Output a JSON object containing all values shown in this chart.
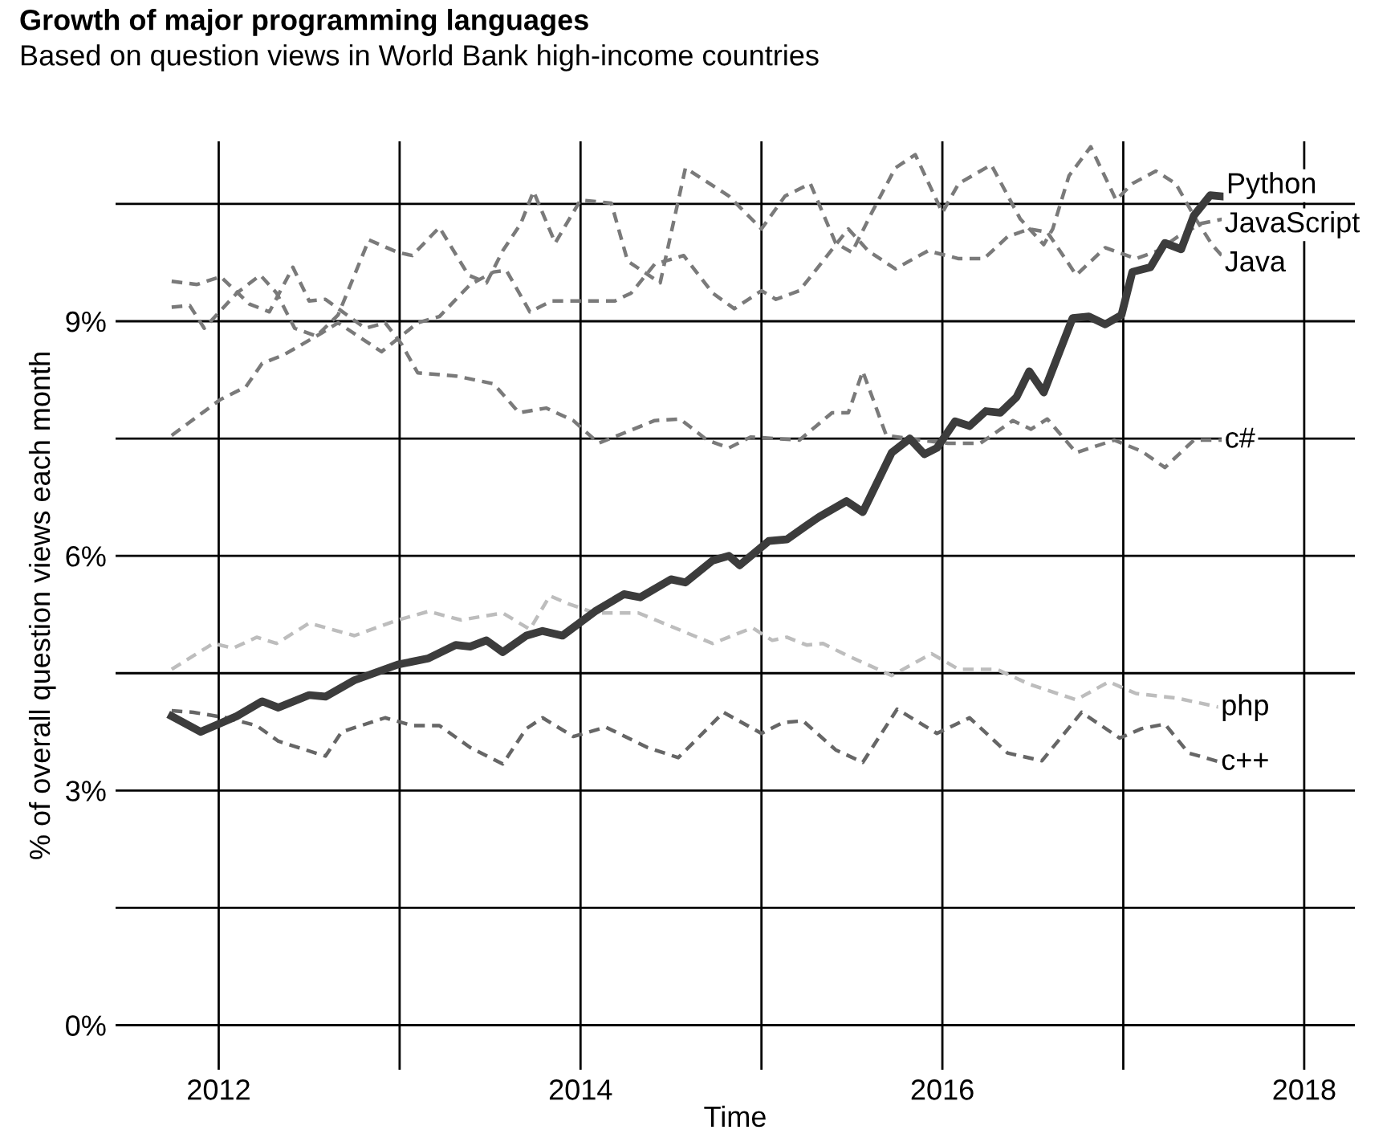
{
  "chart_data": {
    "type": "line",
    "title": "Growth of major programming languages",
    "subtitle": "Based on question views in World Bank high-income countries",
    "xlabel": "Time",
    "ylabel": "% of overall question views each month",
    "xlim": [
      2011.43,
      2018.28
    ],
    "ylim": [
      -0.57,
      11.3
    ],
    "xticks": [
      2012,
      {
        "value": 2013,
        "label": null
      },
      2014,
      {
        "value": 2015,
        "label": null
      },
      2016,
      {
        "value": 2017,
        "label": null
      },
      2018
    ],
    "yticks": [
      {
        "value": 0,
        "label": "0%"
      },
      {
        "value": 1.5,
        "label": null
      },
      {
        "value": 3,
        "label": "3%"
      },
      {
        "value": 4.5,
        "label": null
      },
      {
        "value": 6,
        "label": "6%"
      },
      {
        "value": 7.5,
        "label": null
      },
      {
        "value": 9,
        "label": "9%"
      },
      {
        "value": 10.5,
        "label": null
      }
    ],
    "grid": true,
    "legend": false,
    "series": [
      {
        "name": "Python",
        "color": "#3c3c3c",
        "line_style": "solid",
        "x": [
          2011.74,
          2011.9,
          2012.1,
          2012.24,
          2012.33,
          2012.5,
          2012.59,
          2012.75,
          2012.99,
          2013.16,
          2013.31,
          2013.39,
          2013.48,
          2013.57,
          2013.7,
          2013.79,
          2013.9,
          2014.08,
          2014.24,
          2014.33,
          2014.5,
          2014.58,
          2014.73,
          2014.82,
          2014.88,
          2015.04,
          2015.14,
          2015.25,
          2015.32,
          2015.47,
          2015.56,
          2015.72,
          2015.82,
          2015.9,
          2015.97,
          2016.07,
          2016.15,
          2016.24,
          2016.32,
          2016.41,
          2016.48,
          2016.56,
          2016.72,
          2016.81,
          2016.9,
          2016.99,
          2017.05,
          2017.15,
          2017.23,
          2017.32,
          2017.39,
          2017.48,
          2017.57
        ],
        "values": [
          3.95,
          3.75,
          3.95,
          4.14,
          4.06,
          4.22,
          4.2,
          4.41,
          4.61,
          4.69,
          4.86,
          4.84,
          4.92,
          4.77,
          4.98,
          5.04,
          4.98,
          5.29,
          5.51,
          5.47,
          5.7,
          5.66,
          5.94,
          6.0,
          5.88,
          6.19,
          6.21,
          6.39,
          6.5,
          6.7,
          6.56,
          7.32,
          7.5,
          7.3,
          7.38,
          7.72,
          7.66,
          7.85,
          7.83,
          8.03,
          8.36,
          8.09,
          9.04,
          9.06,
          8.96,
          9.08,
          9.63,
          9.69,
          10.0,
          9.92,
          10.35,
          10.61,
          10.59
        ]
      },
      {
        "name": "JavaScript",
        "color": "#7a7a7a",
        "line_style": "dashed",
        "x": [
          2011.74,
          2012.01,
          2012.15,
          2012.24,
          2012.36,
          2012.57,
          2012.66,
          2012.9,
          2013.1,
          2013.22,
          2013.39,
          2013.52,
          2013.59,
          2013.72,
          2013.84,
          2014.0,
          2014.19,
          2014.28,
          2014.41,
          2014.57,
          2014.73,
          2014.85,
          2015.0,
          2015.08,
          2015.21,
          2015.34,
          2015.48,
          2015.59,
          2015.74,
          2015.92,
          2016.09,
          2016.23,
          2016.36,
          2016.48,
          2016.58,
          2016.74,
          2016.9,
          2017.07,
          2017.19,
          2017.3,
          2017.43,
          2017.56
        ],
        "values": [
          7.54,
          8.0,
          8.16,
          8.46,
          8.57,
          8.85,
          8.98,
          8.61,
          8.98,
          9.06,
          9.47,
          9.63,
          9.65,
          9.12,
          9.26,
          9.26,
          9.26,
          9.36,
          9.73,
          9.84,
          9.36,
          9.16,
          9.39,
          9.28,
          9.39,
          9.77,
          10.18,
          9.9,
          9.67,
          9.9,
          9.8,
          9.8,
          10.08,
          10.18,
          10.14,
          9.59,
          9.94,
          9.8,
          9.9,
          10.08,
          10.25,
          10.31
        ]
      },
      {
        "name": "Java",
        "color": "#7a7a7a",
        "line_style": "dashed",
        "x": [
          2011.74,
          2011.84,
          2011.92,
          2012.1,
          2012.23,
          2012.32,
          2012.42,
          2012.54,
          2012.66,
          2012.83,
          2012.99,
          2013.07,
          2013.22,
          2013.38,
          2013.48,
          2013.57,
          2013.67,
          2013.74,
          2013.86,
          2014.0,
          2014.17,
          2014.26,
          2014.44,
          2014.58,
          2014.82,
          2015.0,
          2015.13,
          2015.27,
          2015.41,
          2015.5,
          2015.61,
          2015.74,
          2015.85,
          2016.0,
          2016.09,
          2016.27,
          2016.43,
          2016.56,
          2016.61,
          2016.7,
          2016.82,
          2016.96,
          2017.05,
          2017.18,
          2017.29,
          2017.4,
          2017.49,
          2017.56
        ],
        "values": [
          9.18,
          9.2,
          8.91,
          9.36,
          9.59,
          9.36,
          8.91,
          8.81,
          9.08,
          10.04,
          9.88,
          9.84,
          10.2,
          9.59,
          9.49,
          9.9,
          10.25,
          10.66,
          10.0,
          10.55,
          10.51,
          9.77,
          9.49,
          10.96,
          10.6,
          10.18,
          10.6,
          10.76,
          10.0,
          9.88,
          10.39,
          10.96,
          11.13,
          10.39,
          10.76,
          11.0,
          10.31,
          9.98,
          10.18,
          10.86,
          11.23,
          10.55,
          10.76,
          10.92,
          10.76,
          10.31,
          9.98,
          9.8
        ]
      },
      {
        "name": "c#",
        "color": "#7a7a7a",
        "line_style": "dashed",
        "x": [
          2011.74,
          2011.88,
          2012.01,
          2012.17,
          2012.28,
          2012.41,
          2012.5,
          2012.59,
          2012.81,
          2012.92,
          2013.01,
          2013.1,
          2013.31,
          2013.52,
          2013.66,
          2013.81,
          2013.96,
          2014.1,
          2014.41,
          2014.55,
          2014.7,
          2014.82,
          2014.94,
          2015.21,
          2015.39,
          2015.48,
          2015.56,
          2015.69,
          2015.88,
          2016.03,
          2016.21,
          2016.39,
          2016.49,
          2016.58,
          2016.74,
          2016.95,
          2017.1,
          2017.23,
          2017.39,
          2017.56
        ],
        "values": [
          9.51,
          9.47,
          9.57,
          9.22,
          9.12,
          9.69,
          9.26,
          9.28,
          8.91,
          8.98,
          8.71,
          8.34,
          8.3,
          8.2,
          7.83,
          7.89,
          7.73,
          7.44,
          7.73,
          7.75,
          7.48,
          7.38,
          7.52,
          7.48,
          7.83,
          7.83,
          8.36,
          7.54,
          7.48,
          7.44,
          7.44,
          7.73,
          7.62,
          7.75,
          7.32,
          7.48,
          7.34,
          7.13,
          7.48,
          7.48
        ]
      },
      {
        "name": "php",
        "color": "#bdbdbd",
        "line_style": "dashed",
        "x": [
          2011.74,
          2011.97,
          2012.08,
          2012.21,
          2012.32,
          2012.5,
          2012.75,
          2012.99,
          2013.16,
          2013.34,
          2013.57,
          2013.72,
          2013.83,
          2013.93,
          2014.08,
          2014.32,
          2014.52,
          2014.73,
          2014.95,
          2015.06,
          2015.14,
          2015.25,
          2015.34,
          2015.47,
          2015.72,
          2015.94,
          2016.09,
          2016.3,
          2016.48,
          2016.74,
          2016.92,
          2017.07,
          2017.3,
          2017.54
        ],
        "values": [
          4.55,
          4.88,
          4.82,
          4.96,
          4.88,
          5.14,
          4.98,
          5.18,
          5.29,
          5.18,
          5.27,
          5.06,
          5.49,
          5.39,
          5.27,
          5.27,
          5.08,
          4.88,
          5.08,
          4.92,
          4.96,
          4.86,
          4.88,
          4.73,
          4.47,
          4.75,
          4.55,
          4.55,
          4.36,
          4.16,
          4.39,
          4.24,
          4.18,
          4.06
        ]
      },
      {
        "name": "c++",
        "color": "#666666",
        "line_style": "dashed",
        "x": [
          2011.74,
          2011.86,
          2012.04,
          2012.21,
          2012.33,
          2012.59,
          2012.68,
          2012.92,
          2013.07,
          2013.22,
          2013.39,
          2013.57,
          2013.7,
          2013.79,
          2013.96,
          2014.14,
          2014.37,
          2014.54,
          2014.64,
          2014.79,
          2015.0,
          2015.12,
          2015.23,
          2015.41,
          2015.56,
          2015.75,
          2015.97,
          2016.15,
          2016.36,
          2016.55,
          2016.77,
          2016.98,
          2017.1,
          2017.23,
          2017.36,
          2017.54
        ],
        "values": [
          4.02,
          4.0,
          3.93,
          3.83,
          3.63,
          3.44,
          3.75,
          3.93,
          3.83,
          3.83,
          3.55,
          3.34,
          3.79,
          3.93,
          3.69,
          3.81,
          3.55,
          3.42,
          3.65,
          4.0,
          3.73,
          3.87,
          3.89,
          3.52,
          3.36,
          4.04,
          3.73,
          3.93,
          3.48,
          3.38,
          4.0,
          3.67,
          3.79,
          3.85,
          3.48,
          3.36
        ]
      }
    ]
  }
}
